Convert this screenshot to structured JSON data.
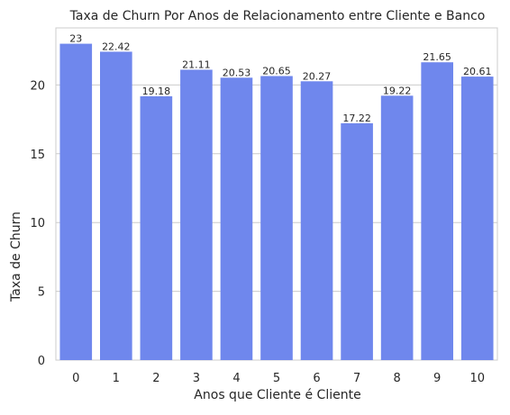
{
  "chart_data": {
    "type": "bar",
    "title": "Taxa de Churn Por Anos de Relacionamento entre Cliente e Banco",
    "xlabel": "Anos que Cliente é Cliente",
    "ylabel": "Taxa de Churn",
    "categories": [
      "0",
      "1",
      "2",
      "3",
      "4",
      "5",
      "6",
      "7",
      "8",
      "9",
      "10"
    ],
    "values": [
      23,
      22.42,
      19.18,
      21.11,
      20.53,
      20.65,
      20.27,
      17.22,
      19.22,
      21.65,
      20.61
    ],
    "value_labels": [
      "23",
      "22.42",
      "19.18",
      "21.11",
      "20.53",
      "20.65",
      "20.27",
      "17.22",
      "19.22",
      "21.65",
      "20.61"
    ],
    "yticks": [
      0,
      5,
      10,
      15,
      20
    ],
    "ylim": [
      0,
      24.15
    ],
    "grid": "horizontal",
    "bar_color": "#6F87ED"
  }
}
